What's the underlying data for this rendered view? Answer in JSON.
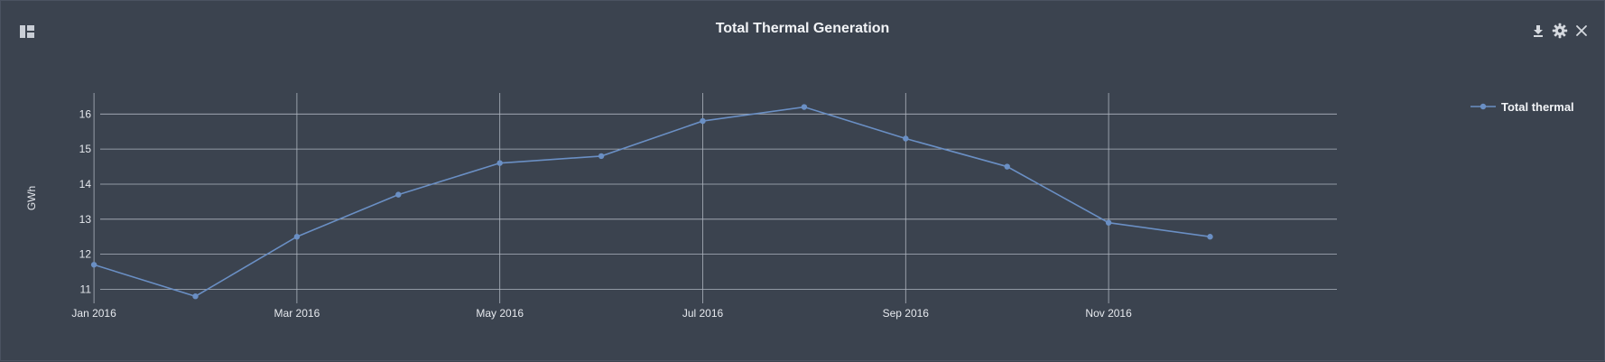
{
  "panel": {
    "title": "Total Thermal Generation",
    "toolbar": {
      "layout_icon": "layout-grid-icon",
      "download_icon": "download-icon",
      "settings_icon": "gear-icon",
      "close_icon": "close-icon"
    }
  },
  "chart_data": {
    "type": "line",
    "title": "Total Thermal Generation",
    "xlabel": "",
    "ylabel": "GWh",
    "x": [
      "2016-01",
      "2016-02",
      "2016-03",
      "2016-04",
      "2016-05",
      "2016-06",
      "2016-07",
      "2016-08",
      "2016-09",
      "2016-10",
      "2016-11",
      "2016-12"
    ],
    "x_ticks": [
      {
        "x": "2016-01",
        "label": "Jan 2016"
      },
      {
        "x": "2016-03",
        "label": "Mar 2016"
      },
      {
        "x": "2016-05",
        "label": "May 2016"
      },
      {
        "x": "2016-07",
        "label": "Jul 2016"
      },
      {
        "x": "2016-09",
        "label": "Sep 2016"
      },
      {
        "x": "2016-11",
        "label": "Nov 2016"
      }
    ],
    "y_ticks": [
      11,
      12,
      13,
      14,
      15,
      16
    ],
    "ylim": [
      10.6,
      16.6
    ],
    "grid": true,
    "legend": "top-right",
    "series": [
      {
        "name": "Total thermal",
        "color": "#6a8fc4",
        "values": [
          11.7,
          10.8,
          12.5,
          13.7,
          14.6,
          14.8,
          15.8,
          16.2,
          15.3,
          14.5,
          12.9,
          12.5
        ]
      }
    ]
  }
}
